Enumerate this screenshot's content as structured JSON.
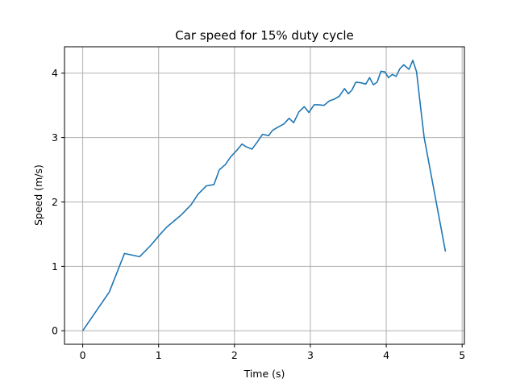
{
  "chart_data": {
    "type": "line",
    "title": "Car speed for 15% duty cycle",
    "xlabel": "Time (s)",
    "ylabel": "Speed (m/s)",
    "xlim": [
      -0.24,
      5.03
    ],
    "ylim": [
      -0.21,
      4.41
    ],
    "xticks": [
      0,
      1,
      2,
      3,
      4,
      5
    ],
    "yticks": [
      0,
      1,
      2,
      3,
      4
    ],
    "grid": true,
    "line_color": "#1f77b4",
    "series": [
      {
        "x": [
          0,
          0.35,
          0.55,
          0.75,
          0.9,
          1.0,
          1.1,
          1.2,
          1.3,
          1.35,
          1.43,
          1.52,
          1.63,
          1.73,
          1.8,
          1.88,
          1.95,
          2.03,
          2.1,
          2.15,
          2.23,
          2.3,
          2.37,
          2.45,
          2.5,
          2.57,
          2.65,
          2.72,
          2.78,
          2.85,
          2.92,
          2.98,
          3.05,
          3.1,
          3.18,
          3.25,
          3.32,
          3.38,
          3.45,
          3.5,
          3.55,
          3.6,
          3.67,
          3.73,
          3.78,
          3.83,
          3.88,
          3.93,
          3.98,
          4.03,
          4.08,
          4.13,
          4.18,
          4.23,
          4.3,
          4.35,
          4.4,
          4.45,
          4.5,
          4.78
        ],
        "y": [
          0,
          0.6,
          1.2,
          1.15,
          1.33,
          1.47,
          1.6,
          1.7,
          1.8,
          1.86,
          1.96,
          2.12,
          2.25,
          2.27,
          2.5,
          2.58,
          2.7,
          2.8,
          2.9,
          2.86,
          2.82,
          2.93,
          3.05,
          3.03,
          3.11,
          3.16,
          3.21,
          3.3,
          3.23,
          3.4,
          3.48,
          3.39,
          3.51,
          3.51,
          3.5,
          3.57,
          3.6,
          3.64,
          3.76,
          3.68,
          3.74,
          3.86,
          3.85,
          3.83,
          3.93,
          3.82,
          3.86,
          4.03,
          4.02,
          3.93,
          3.98,
          3.95,
          4.07,
          4.13,
          4.06,
          4.2,
          4.02,
          3.5,
          3.0,
          1.23
        ]
      }
    ]
  }
}
